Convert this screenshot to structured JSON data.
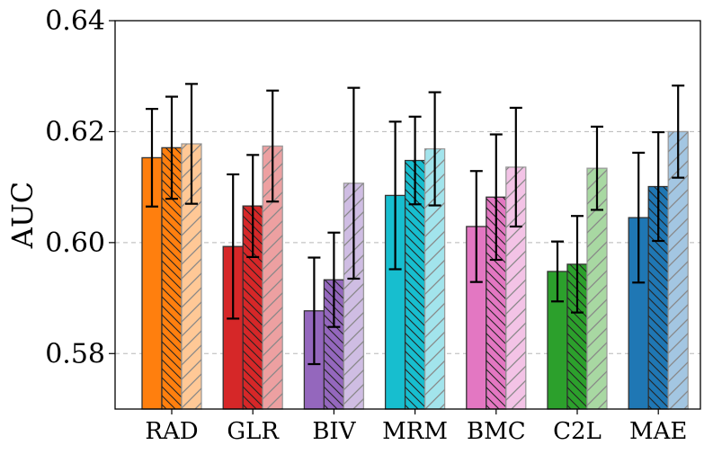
{
  "chart_data": {
    "type": "bar",
    "categories": [
      "RAD",
      "GLR",
      "BIV",
      "MRM",
      "BMC",
      "C2L",
      "MAE"
    ],
    "series": [
      {
        "values": [
          0.6153,
          0.5993,
          0.5877,
          0.6085,
          0.6029,
          0.5948,
          0.6045
        ],
        "errors": [
          0.0088,
          0.013,
          0.0096,
          0.0133,
          0.01,
          0.0054,
          0.0117
        ]
      },
      {
        "values": [
          0.6171,
          0.6066,
          0.5933,
          0.6148,
          0.6082,
          0.5961,
          0.6101
        ],
        "errors": [
          0.0092,
          0.0092,
          0.0085,
          0.0079,
          0.0113,
          0.0087,
          0.0098
        ]
      },
      {
        "values": [
          0.6178,
          0.6174,
          0.6107,
          0.6169,
          0.6136,
          0.6134,
          0.62
        ],
        "errors": [
          0.0108,
          0.01,
          0.0172,
          0.0102,
          0.0107,
          0.0075,
          0.0083
        ]
      }
    ],
    "series_styles": [
      {
        "hatch": "none",
        "alpha": "full"
      },
      {
        "hatch": "backslash",
        "alpha": "full"
      },
      {
        "hatch": "slash",
        "alpha": "light"
      }
    ],
    "colors": [
      "#ff7f0e",
      "#d62728",
      "#9467bd",
      "#17becf",
      "#e377c2",
      "#2ca02c",
      "#1f77b4"
    ],
    "light_colors": [
      "#ffc896",
      "#eda0a1",
      "#cfbde3",
      "#a2e4ec",
      "#f3c3e6",
      "#a8d8a2",
      "#a3c6e2"
    ],
    "ylabel": "AUC",
    "xlabel": "",
    "title": "",
    "ylim": [
      0.57,
      0.64
    ],
    "yticks": [
      0.58,
      0.6,
      0.62,
      0.64
    ],
    "ytick_labels": [
      "0.58",
      "0.60",
      "0.62",
      "0.64"
    ],
    "grid": "horizontal dashed",
    "legend": "none"
  }
}
